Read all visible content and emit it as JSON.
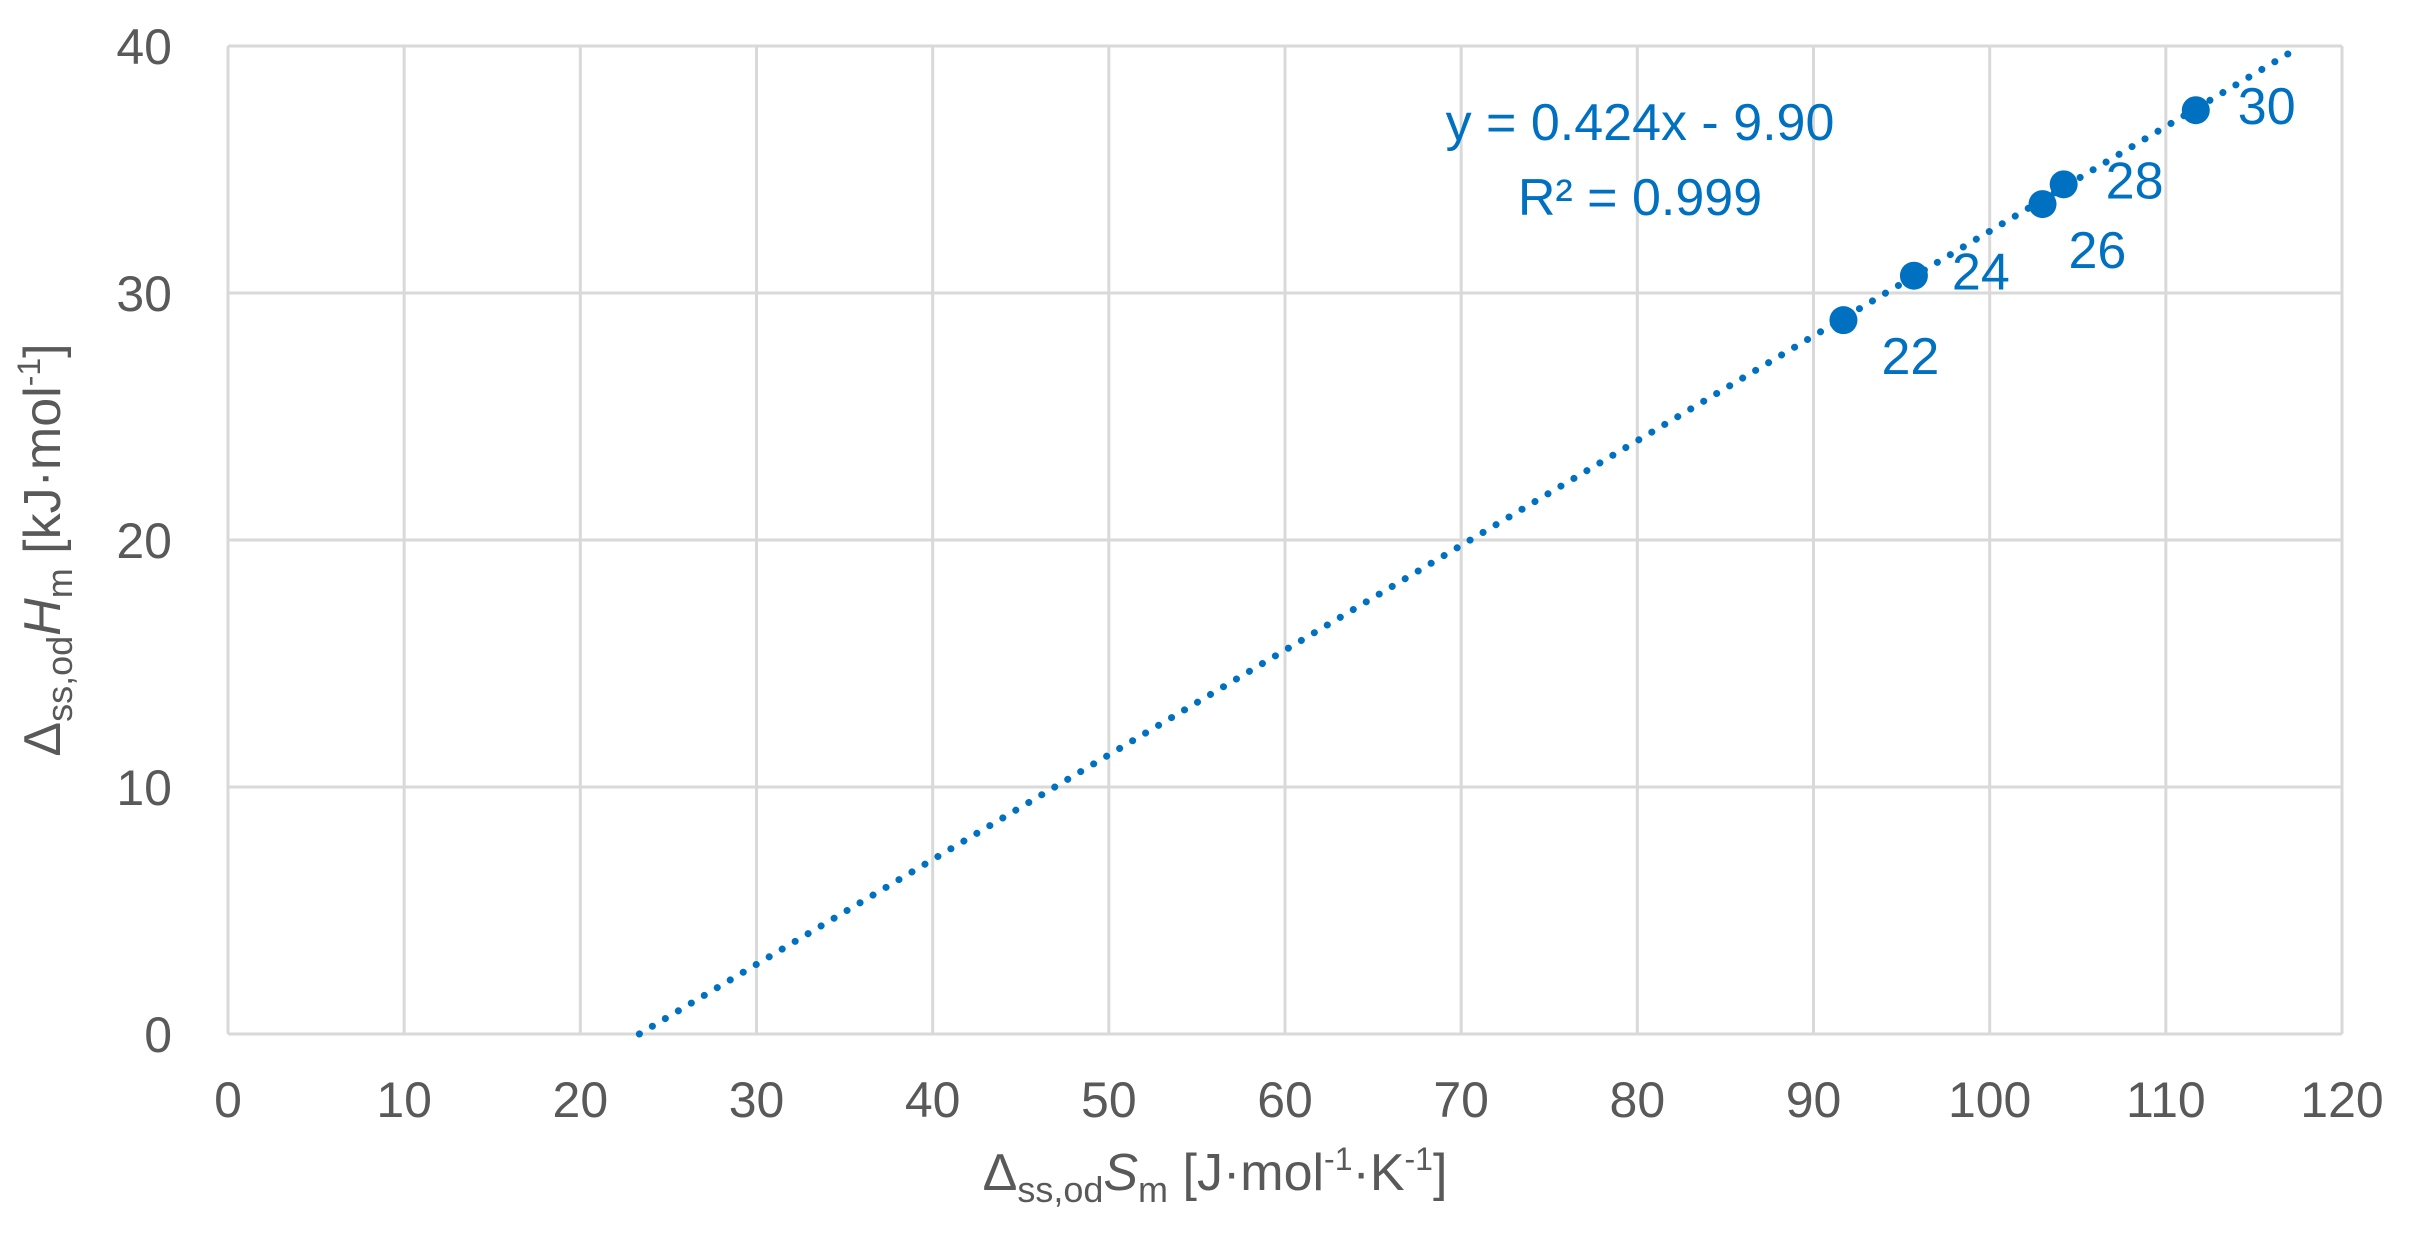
{
  "chart_data": {
    "type": "scatter",
    "title": "",
    "xlim": [
      0,
      120
    ],
    "ylim": [
      0,
      40
    ],
    "x_ticks": [
      0,
      10,
      20,
      30,
      40,
      50,
      60,
      70,
      80,
      90,
      100,
      110,
      120
    ],
    "y_ticks": [
      0,
      10,
      20,
      30,
      40
    ],
    "x_tick_labels": [
      "0",
      "10",
      "20",
      "30",
      "40",
      "50",
      "60",
      "70",
      "80",
      "90",
      "100",
      "110",
      "120"
    ],
    "y_tick_labels": [
      "0",
      "10",
      "20",
      "30",
      "40"
    ],
    "grid": true,
    "xlabel": {
      "delta": "Δ",
      "sub": "ss,od",
      "var": "S",
      "var_sub": "m",
      "unit_a": " [J·mol",
      "exp1": "-1",
      "unit_b": "·K",
      "exp2": "-1",
      "unit_c": "]"
    },
    "ylabel": {
      "delta": "Δ",
      "sub": "ss,od",
      "var": "H",
      "var_sub": "m",
      "unit_a": " [kJ·mol",
      "exp1": "-1",
      "unit_c": "]"
    },
    "series": [
      {
        "points": [
          {
            "x": 91.7,
            "y": 28.9,
            "label": "22"
          },
          {
            "x": 95.7,
            "y": 30.7,
            "label": "24"
          },
          {
            "x": 103.0,
            "y": 33.6,
            "label": "26"
          },
          {
            "x": 104.2,
            "y": 34.4,
            "label": "28"
          },
          {
            "x": 111.7,
            "y": 37.4,
            "label": "30"
          }
        ]
      }
    ],
    "trendline": {
      "type": "linear",
      "slope": 0.424,
      "intercept": -9.9,
      "x_range": [
        23.35,
        117.4
      ],
      "equation_text": "y = 0.424x - 9.90",
      "r2_text": "R² = 0.999",
      "style": "dotted"
    },
    "colors": {
      "series": "#0070C0",
      "grid": "#D9D9D9",
      "tick_text": "#595959"
    }
  }
}
